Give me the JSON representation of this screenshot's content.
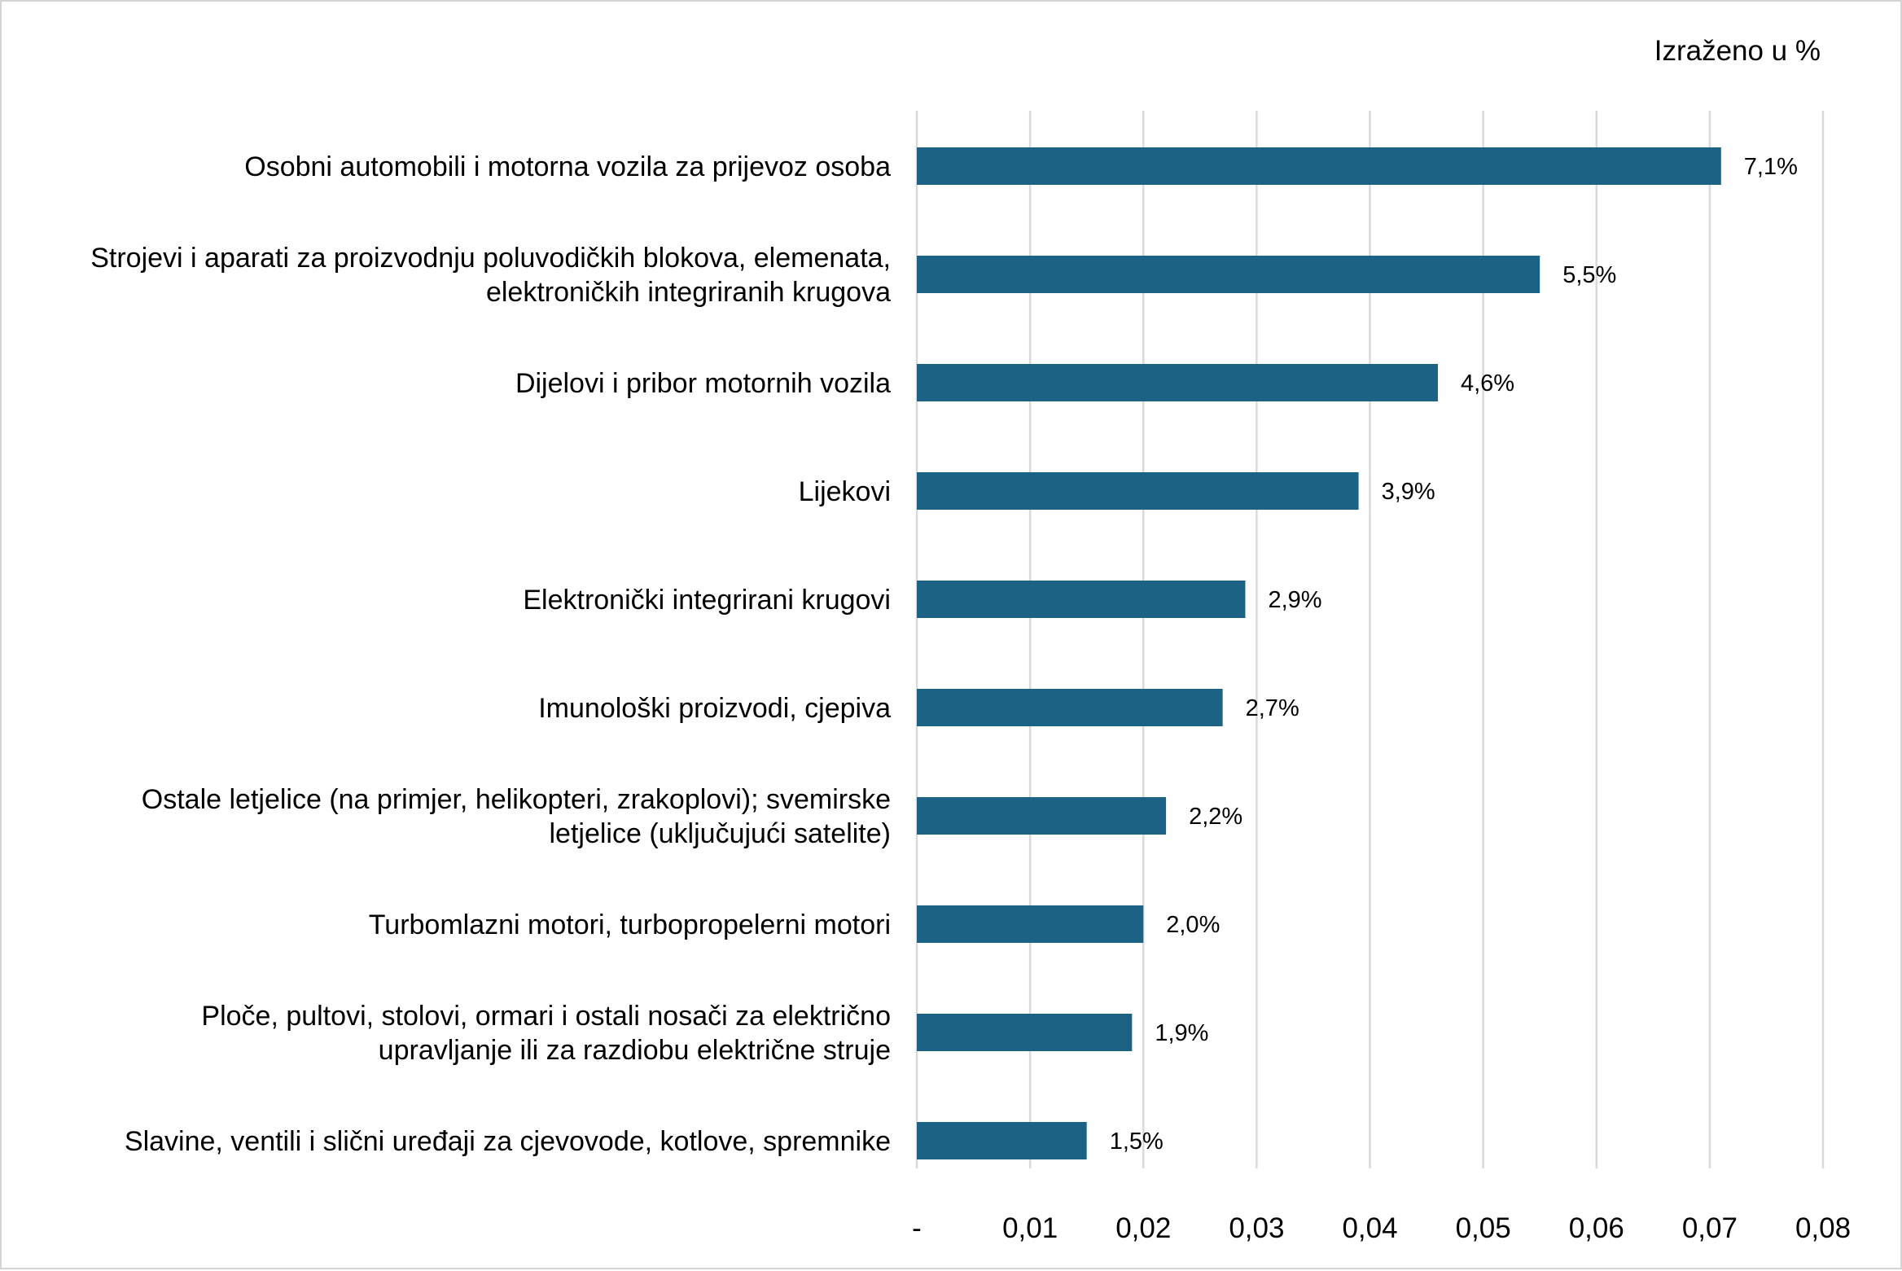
{
  "chart_data": {
    "type": "bar",
    "orientation": "horizontal",
    "note": "Izraženo u %",
    "categories": [
      [
        "Osobni automobili i motorna vozila za prijevoz osoba"
      ],
      [
        "Strojevi i aparati za proizvodnju poluvodičkih blokova, elemenata,",
        "elektroničkih integriranih krugova"
      ],
      [
        "Dijelovi i pribor motornih vozila"
      ],
      [
        "Lijekovi"
      ],
      [
        "Elektronički integrirani krugovi"
      ],
      [
        "Imunološki proizvodi, cjepiva"
      ],
      [
        "Ostale letjelice (na primjer, helikopteri, zrakoplovi); svemirske",
        "letjelice (uključujući satelite)"
      ],
      [
        "Turbomlazni motori, turbopropelerni motori"
      ],
      [
        "Ploče, pultovi, stolovi, ormari i ostali nosači za električno",
        "upravljanje ili za razdiobu električne struje"
      ],
      [
        "Slavine, ventili i slični uređaji za cjevovode, kotlove, spremnike"
      ]
    ],
    "values": [
      0.071,
      0.055,
      0.046,
      0.039,
      0.029,
      0.027,
      0.022,
      0.02,
      0.019,
      0.015
    ],
    "data_labels": [
      "7,1%",
      "5,5%",
      "4,6%",
      "3,9%",
      "2,9%",
      "2,7%",
      "2,2%",
      "2,0%",
      "1,9%",
      "1,5%"
    ],
    "xlim": [
      0,
      0.08
    ],
    "x_ticks": [
      0,
      0.01,
      0.02,
      0.03,
      0.04,
      0.05,
      0.06,
      0.07,
      0.08
    ],
    "x_tick_labels": [
      "-",
      "0,01",
      "0,02",
      "0,03",
      "0,04",
      "0,05",
      "0,06",
      "0,07",
      "0,08"
    ],
    "grid": "vertical",
    "legend": "none",
    "bar_color": "#1b6285",
    "grid_color": "#d9d9d9"
  }
}
